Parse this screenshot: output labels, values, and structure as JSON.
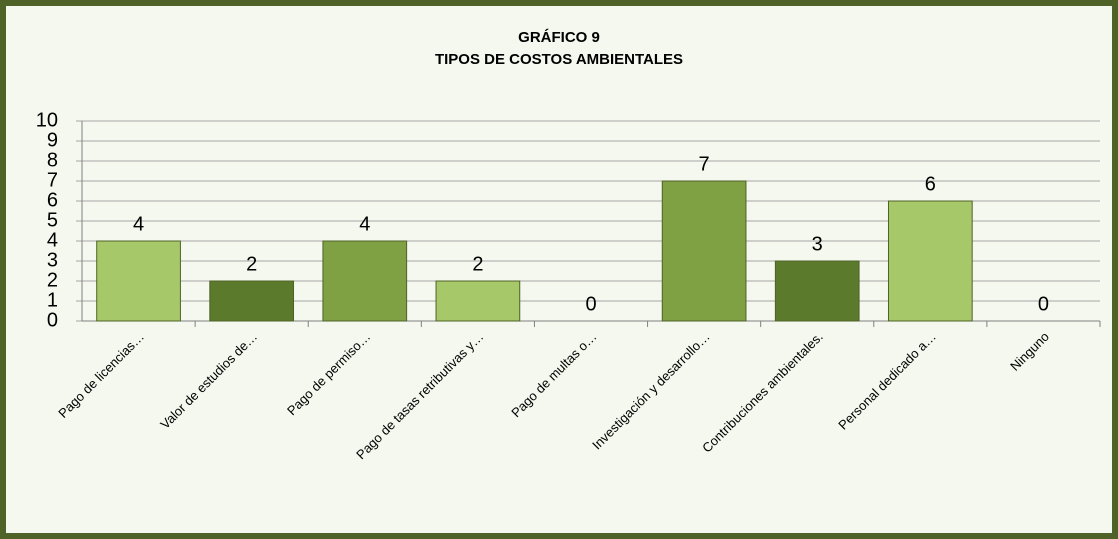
{
  "chart_data": {
    "type": "bar",
    "title": "GRÁFICO 9",
    "subtitle": "TIPOS DE COSTOS AMBIENTALES",
    "categories": [
      "Pago de licencias…",
      "Valor de estudios de…",
      "Pago de permiso…",
      "Pago de tasas retributivas y…",
      "Pago de multas o…",
      "Investigación y desarrollo…",
      "Contribuciones ambientales.",
      "Personal dedicado a…",
      "Ninguno"
    ],
    "values": [
      4,
      2,
      4,
      2,
      0,
      7,
      3,
      6,
      0
    ],
    "colors": [
      "#a6c868",
      "#5b7a2c",
      "#7fa043",
      "#a6c868",
      "#a6c868",
      "#7fa043",
      "#5b7a2c",
      "#a6c868",
      "#a6c868"
    ],
    "ylim": [
      0,
      10
    ],
    "yticks": [
      0,
      1,
      2,
      3,
      4,
      5,
      6,
      7,
      8,
      9,
      10
    ],
    "grid": true
  }
}
